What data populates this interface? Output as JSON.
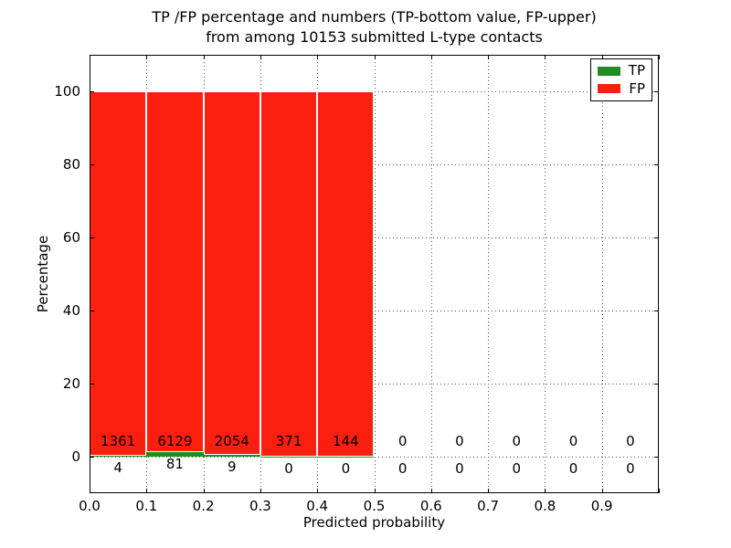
{
  "chart_data": {
    "type": "bar",
    "subtype": "stacked-percentage-histogram",
    "title": [
      "TP /FP percentage and numbers (TP-bottom value, FP-upper)",
      "from among 10153 submitted L-type contacts"
    ],
    "xlabel": "Predicted probability",
    "ylabel": "Percentage",
    "xlim": [
      0.0,
      1.0
    ],
    "ylim": [
      -10,
      110
    ],
    "grid": "dotted",
    "legend_position": "upper-right",
    "xticks": [
      {
        "v": 0.0,
        "label": "0.0"
      },
      {
        "v": 0.1,
        "label": "0.1"
      },
      {
        "v": 0.2,
        "label": "0.2"
      },
      {
        "v": 0.3,
        "label": "0.3"
      },
      {
        "v": 0.4,
        "label": "0.4"
      },
      {
        "v": 0.5,
        "label": "0.5"
      },
      {
        "v": 0.6,
        "label": "0.6"
      },
      {
        "v": 0.7,
        "label": "0.7"
      },
      {
        "v": 0.8,
        "label": "0.8"
      },
      {
        "v": 0.9,
        "label": "0.9"
      }
    ],
    "yticks": [
      {
        "v": 0,
        "label": "0"
      },
      {
        "v": 20,
        "label": "20"
      },
      {
        "v": 40,
        "label": "40"
      },
      {
        "v": 60,
        "label": "60"
      },
      {
        "v": 80,
        "label": "80"
      },
      {
        "v": 100,
        "label": "100"
      }
    ],
    "bins": [
      {
        "x0": 0.0,
        "x1": 0.1,
        "tp": 4,
        "fp": 1361,
        "tp_pct": 0.293,
        "fp_pct": 99.707
      },
      {
        "x0": 0.1,
        "x1": 0.2,
        "tp": 81,
        "fp": 6129,
        "tp_pct": 1.304,
        "fp_pct": 98.696
      },
      {
        "x0": 0.2,
        "x1": 0.3,
        "tp": 9,
        "fp": 2054,
        "tp_pct": 0.436,
        "fp_pct": 99.564
      },
      {
        "x0": 0.3,
        "x1": 0.4,
        "tp": 0,
        "fp": 371,
        "tp_pct": 0.0,
        "fp_pct": 100.0
      },
      {
        "x0": 0.4,
        "x1": 0.5,
        "tp": 0,
        "fp": 144,
        "tp_pct": 0.0,
        "fp_pct": 100.0
      },
      {
        "x0": 0.5,
        "x1": 0.6,
        "tp": 0,
        "fp": 0,
        "tp_pct": 0.0,
        "fp_pct": 0.0
      },
      {
        "x0": 0.6,
        "x1": 0.7,
        "tp": 0,
        "fp": 0,
        "tp_pct": 0.0,
        "fp_pct": 0.0
      },
      {
        "x0": 0.7,
        "x1": 0.8,
        "tp": 0,
        "fp": 0,
        "tp_pct": 0.0,
        "fp_pct": 0.0
      },
      {
        "x0": 0.8,
        "x1": 0.9,
        "tp": 0,
        "fp": 0,
        "tp_pct": 0.0,
        "fp_pct": 0.0
      },
      {
        "x0": 0.9,
        "x1": 1.0,
        "tp": 0,
        "fp": 0,
        "tp_pct": 0.0,
        "fp_pct": 0.0
      }
    ],
    "legend": [
      {
        "name": "TP",
        "color": "#228b22"
      },
      {
        "name": "FP",
        "color": "#fb1f10"
      }
    ],
    "colors": {
      "tp": "#228b22",
      "fp": "#fb1f10",
      "grid": "#4a4a4a",
      "frame": "#000000",
      "background": "#ffffff",
      "text": "#000000"
    }
  }
}
